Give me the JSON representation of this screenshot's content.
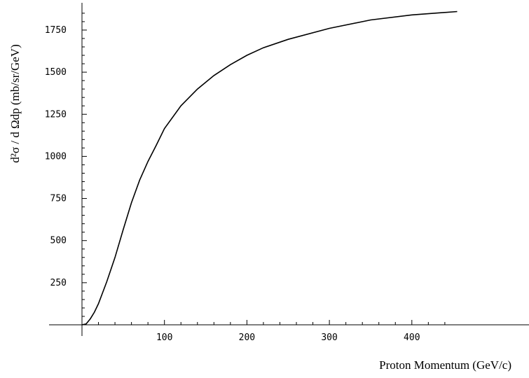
{
  "chart_data": {
    "type": "line",
    "title": "",
    "xlabel": "Proton Momentum (GeV/c)",
    "ylabel": "d²σ / d Ωdp  (mb/sr/GeV)",
    "xlim": [
      0,
      455
    ],
    "ylim": [
      0,
      1875
    ],
    "x_ticks": [
      100,
      200,
      300,
      400
    ],
    "x_tick_labels": [
      "100",
      "200",
      "300",
      "400"
    ],
    "y_ticks": [
      250,
      500,
      750,
      1000,
      1250,
      1500,
      1750
    ],
    "y_tick_labels": [
      "250",
      "500",
      "750",
      "1000",
      "1250",
      "1500",
      "1750"
    ],
    "grid": false,
    "series": [
      {
        "values_x": [
          0,
          5,
          10,
          15,
          20,
          30,
          40,
          50,
          60,
          70,
          80,
          90,
          100,
          120,
          140,
          160,
          180,
          200,
          220,
          250,
          300,
          350,
          400,
          455
        ],
        "values_y": [
          0,
          5,
          35,
          75,
          125,
          255,
          400,
          565,
          725,
          860,
          970,
          1065,
          1165,
          1300,
          1400,
          1480,
          1545,
          1600,
          1645,
          1695,
          1760,
          1810,
          1840,
          1860
        ]
      }
    ]
  }
}
